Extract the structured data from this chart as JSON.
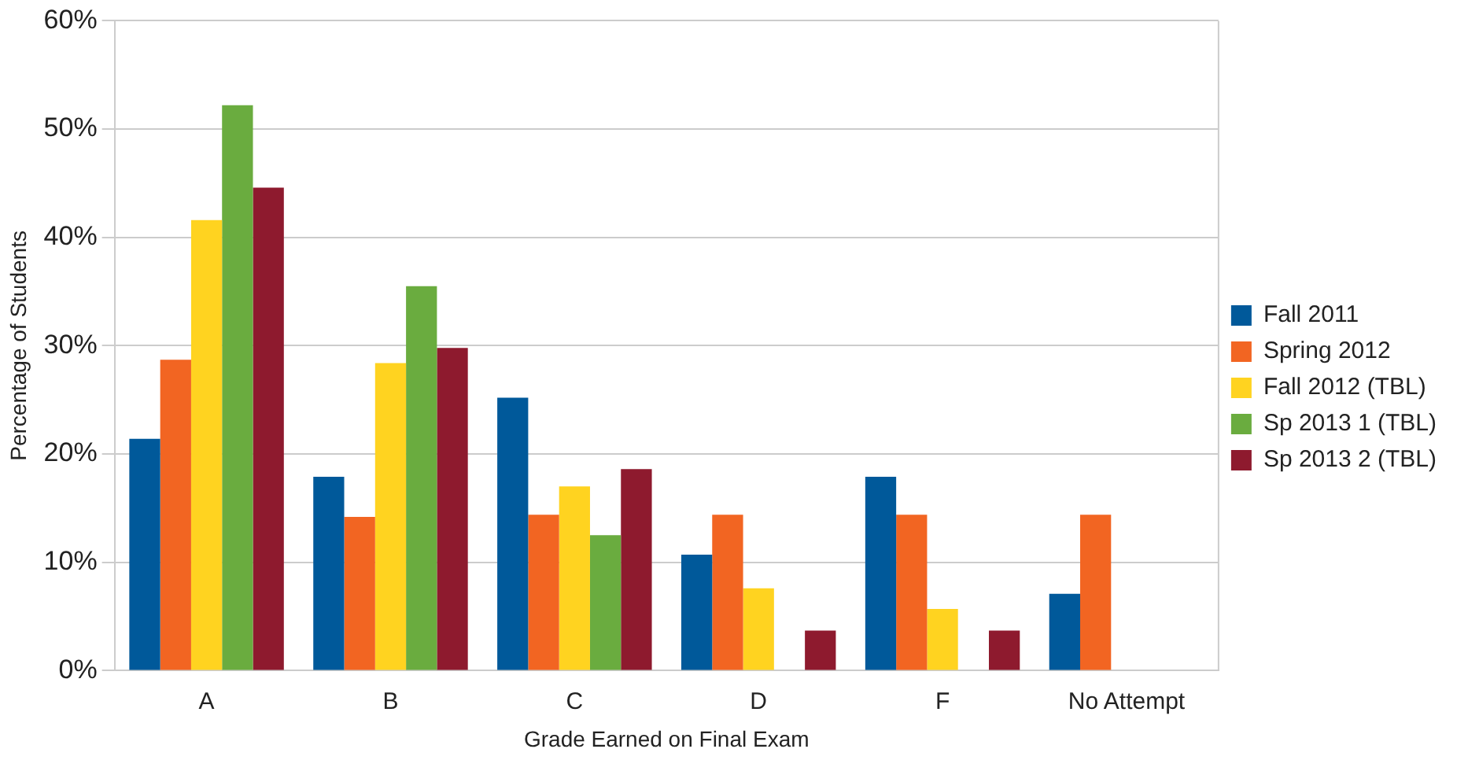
{
  "chart_data": {
    "type": "bar",
    "xlabel": "Grade Earned on Final Exam",
    "ylabel": "Percentage of Students",
    "categories": [
      "A",
      "B",
      "C",
      "D",
      "F",
      "No Attempt"
    ],
    "series": [
      {
        "name": "Fall 2011",
        "color": "#00599a",
        "values": [
          21.4,
          17.9,
          25.2,
          10.7,
          17.9,
          7.1
        ]
      },
      {
        "name": "Spring 2012",
        "color": "#f26522",
        "values": [
          28.7,
          14.2,
          14.4,
          14.4,
          14.4,
          14.4
        ]
      },
      {
        "name": "Fall 2012 (TBL)",
        "color": "#ffd320",
        "values": [
          41.6,
          28.4,
          17.0,
          7.6,
          5.7,
          0
        ]
      },
      {
        "name": "Sp 2013 1 (TBL)",
        "color": "#6aac3f",
        "values": [
          52.2,
          35.5,
          12.5,
          0,
          0,
          0
        ]
      },
      {
        "name": "Sp 2013 2 (TBL)",
        "color": "#8e1a2e",
        "values": [
          44.6,
          29.8,
          18.6,
          3.7,
          3.7,
          0
        ]
      }
    ],
    "ylim": [
      0,
      60
    ],
    "yticks": [
      {
        "value": 0,
        "label": "0%"
      },
      {
        "value": 10,
        "label": "10%"
      },
      {
        "value": 20,
        "label": "20%"
      },
      {
        "value": 30,
        "label": "30%"
      },
      {
        "value": 40,
        "label": "40%"
      },
      {
        "value": 50,
        "label": "50%"
      },
      {
        "value": 60,
        "label": "60%"
      }
    ],
    "grid": "y",
    "legend": "right"
  }
}
